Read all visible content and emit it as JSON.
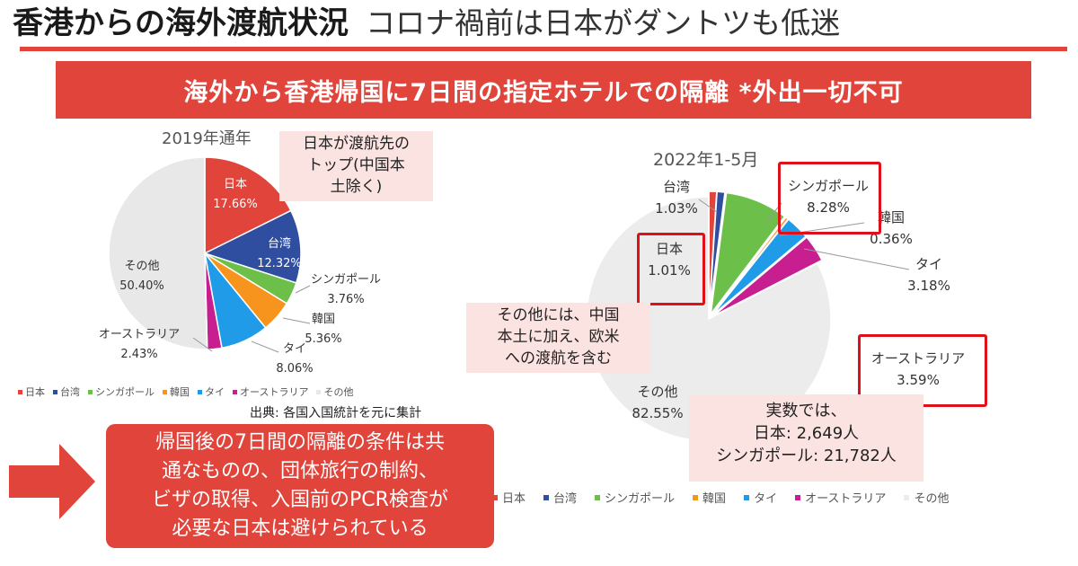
{
  "header": {
    "title_main": "香港からの海外渡航状況",
    "title_sub": "コロナ禍前は日本がダントツも低迷"
  },
  "banner": {
    "text": "海外から香港帰国に7日間の指定ホテルでの隔離 *外出一切不可"
  },
  "colors": {
    "accent": "#e0443b",
    "callout_bg": "#fbe3e1",
    "highlight_border": "#e0101a"
  },
  "chart_data": [
    {
      "type": "pie",
      "title": "2019年通年",
      "slices": [
        {
          "label": "日本",
          "value": 17.66,
          "display": "17.66%",
          "color": "#e0443b"
        },
        {
          "label": "台湾",
          "value": 12.32,
          "display": "12.32%",
          "color": "#2f4e9f"
        },
        {
          "label": "シンガポール",
          "value": 3.76,
          "display": "3.76%",
          "color": "#6cc04a"
        },
        {
          "label": "韓国",
          "value": 5.36,
          "display": "5.36%",
          "color": "#f7941d"
        },
        {
          "label": "タイ",
          "value": 8.06,
          "display": "8.06%",
          "color": "#1f9be8"
        },
        {
          "label": "オーストラリア",
          "value": 2.43,
          "display": "2.43%",
          "color": "#c71f8f"
        },
        {
          "label": "その他",
          "value": 50.4,
          "display": "50.40%",
          "color": "#e8e8e8"
        }
      ],
      "legend": [
        "日本",
        "台湾",
        "シンガポール",
        "韓国",
        "タイ",
        "オーストラリア",
        "その他"
      ],
      "legend_position": "bottom"
    },
    {
      "type": "pie",
      "title": "2022年1-5月",
      "slices": [
        {
          "label": "日本",
          "value": 1.01,
          "display": "1.01%",
          "color": "#e0443b"
        },
        {
          "label": "台湾",
          "value": 1.03,
          "display": "1.03%",
          "color": "#2f4e9f"
        },
        {
          "label": "シンガポール",
          "value": 8.28,
          "display": "8.28%",
          "color": "#6cc04a"
        },
        {
          "label": "韓国",
          "value": 0.36,
          "display": "0.36%",
          "color": "#f7941d"
        },
        {
          "label": "タイ",
          "value": 3.18,
          "display": "3.18%",
          "color": "#1f9be8"
        },
        {
          "label": "オーストラリア",
          "value": 3.59,
          "display": "3.59%",
          "color": "#c71f8f"
        },
        {
          "label": "その他",
          "value": 82.55,
          "display": "82.55%",
          "color": "#ececec"
        }
      ],
      "legend": [
        "日本",
        "台湾",
        "シンガポール",
        "韓国",
        "タイ",
        "オーストラリア",
        "その他"
      ],
      "legend_position": "bottom"
    }
  ],
  "callouts": {
    "japan_top": [
      "日本が渡航先の",
      "トップ(中国本",
      "土除く)"
    ],
    "others_note": [
      "その他には、中国",
      "本土に加え、欧米",
      "への渡航を含む"
    ],
    "actual": [
      "実数では、",
      "日本: 2,649人",
      "シンガポール: 21,782人"
    ]
  },
  "source": "出典: 各国入国統計を元に集計",
  "conclusion": [
    "帰国後の7日間の隔離の条件は共",
    "通なものの、団体旅行の制約、",
    "ビザの取得、入国前のPCR検査が",
    "必要な日本は避けられている"
  ]
}
